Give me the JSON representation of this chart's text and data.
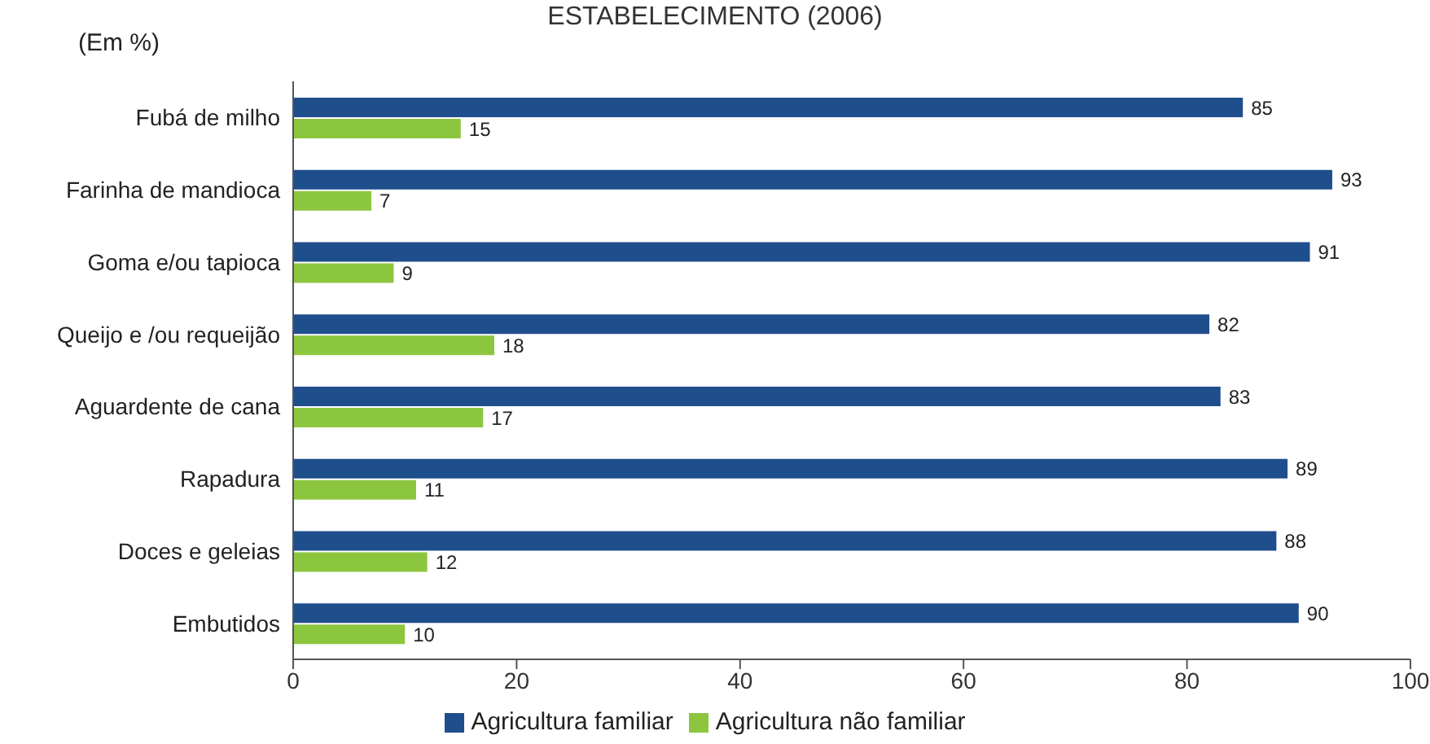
{
  "chart_data": {
    "type": "bar",
    "orientation": "horizontal",
    "title": "ESTABELECIMENTO (2006)",
    "ylabel": "(Em %)",
    "categories": [
      "Fubá de milho",
      "Farinha de mandioca",
      "Goma e/ou tapioca",
      "Queijo e  /ou requeijão",
      "Aguardente de cana",
      "Rapadura",
      "Doces e geleias",
      "Embutidos"
    ],
    "series": [
      {
        "name": "Agricultura familiar",
        "color": "#1f4e8c",
        "values": [
          85,
          93,
          91,
          82,
          83,
          89,
          88,
          90
        ]
      },
      {
        "name": "Agricultura não familiar",
        "color": "#8cc63f",
        "values": [
          15,
          7,
          9,
          18,
          17,
          11,
          12,
          10
        ]
      }
    ],
    "xlim": [
      0,
      100
    ],
    "xticks": [
      0,
      20,
      40,
      60,
      80,
      100
    ],
    "data_labels": true,
    "legend": "bottom",
    "grid": false
  }
}
